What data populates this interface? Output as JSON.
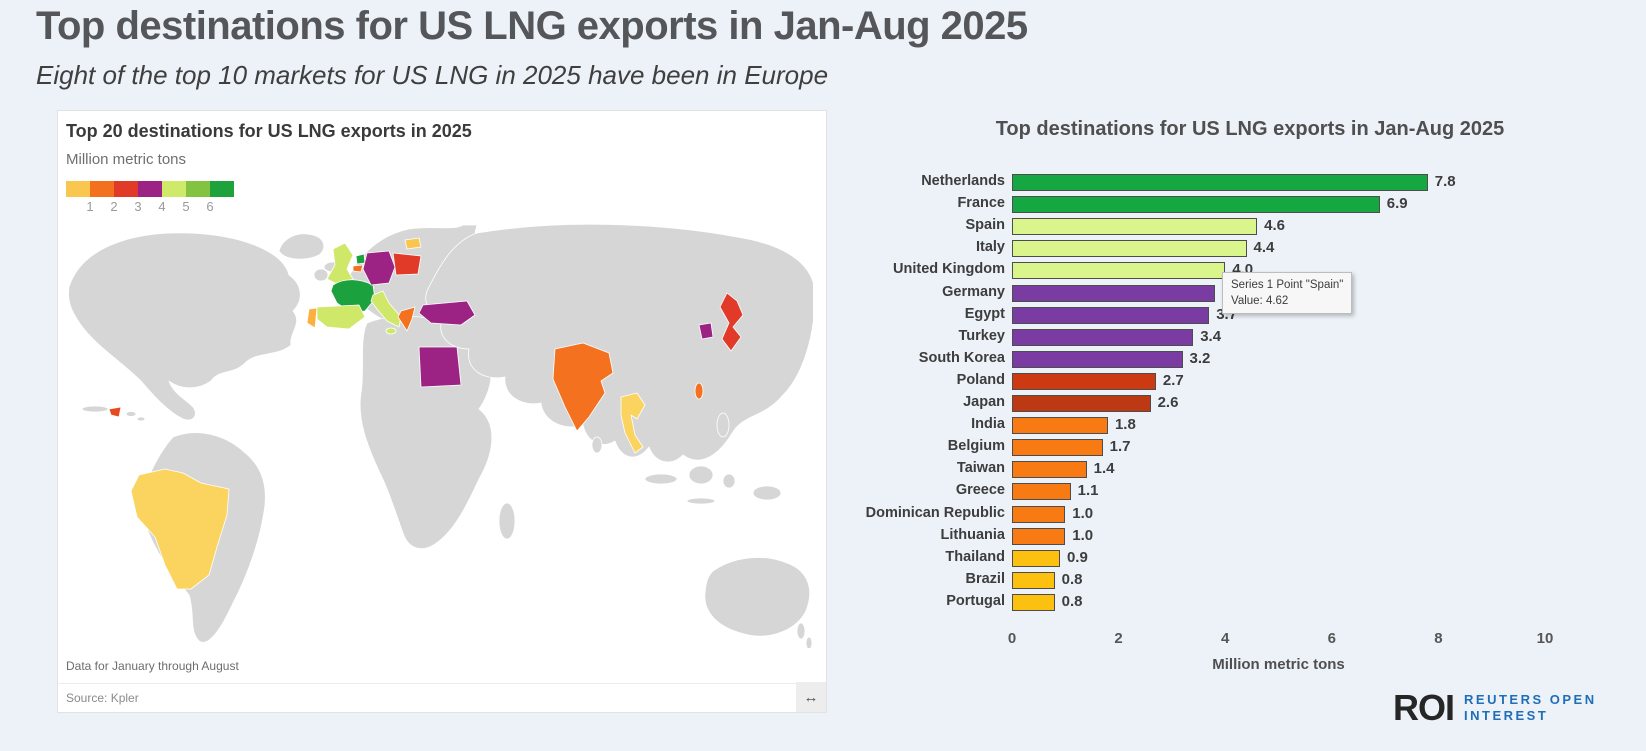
{
  "page": {
    "title": "Top destinations for US LNG exports in Jan-Aug 2025",
    "subtitle": "Eight of the top 10 markets for US LNG in 2025 have been in Europe",
    "background_color": "#ecf2f8"
  },
  "map_panel": {
    "title": "Top 20 destinations for US LNG exports in 2025",
    "units_label": "Million metric tons",
    "legend": {
      "colors": [
        "#f9c74f",
        "#f3711e",
        "#e23a28",
        "#9c2383",
        "#cfe969",
        "#82c341",
        "#1ea23c"
      ],
      "labels": [
        "1",
        "2",
        "3",
        "4",
        "5",
        "6"
      ]
    },
    "footnote": "Data for January through August",
    "source": "Source: Kpler",
    "resize_icon": "↔",
    "land_color": "#d6d6d6",
    "ocean_color": "#ffffff",
    "country_colors": {
      "brazil": "#fad45e",
      "dominican_republic": "#e8491f",
      "uk": "#cfe869",
      "ireland_land": "#d6d6d6",
      "netherlands": "#1ba23e",
      "belgium": "#f4711f",
      "france": "#1ba23e",
      "spain": "#cfe869",
      "portugal": "#fbb040",
      "germany": "#9c2383",
      "poland": "#e23a28",
      "lithuania": "#f9c74f",
      "italy": "#cfe869",
      "greece": "#f4711f",
      "turkey": "#9c2383",
      "egypt": "#9c2383",
      "india": "#f4711f",
      "thailand": "#fad45e",
      "taiwan": "#f4711f",
      "south_korea": "#9c2383",
      "japan": "#e23a28"
    }
  },
  "chart_data": {
    "type": "bar",
    "orientation": "horizontal",
    "title": "Top destinations for US LNG exports in Jan-Aug 2025",
    "xlabel": "Million metric tons",
    "xlim": [
      0,
      10
    ],
    "xticks": [
      0,
      2,
      4,
      6,
      8,
      10
    ],
    "xtick_labels": [
      "0",
      "2",
      "4",
      "6",
      "8",
      "10"
    ],
    "grid": false,
    "legend_position": "none",
    "categories": [
      "Netherlands",
      "France",
      "Spain",
      "Italy",
      "United Kingdom",
      "Germany",
      "Egypt",
      "Turkey",
      "South Korea",
      "Poland",
      "Japan",
      "India",
      "Belgium",
      "Taiwan",
      "Greece",
      "Dominican Republic",
      "Lithuania",
      "Thailand",
      "Brazil",
      "Portugal"
    ],
    "values": [
      7.8,
      6.9,
      4.6,
      4.4,
      4.0,
      3.8,
      3.7,
      3.4,
      3.2,
      2.7,
      2.6,
      1.8,
      1.7,
      1.4,
      1.1,
      1.0,
      1.0,
      0.9,
      0.8,
      0.8
    ],
    "value_labels": [
      "7.8",
      "6.9",
      "4.6",
      "4.4",
      "4.0",
      "",
      "3.7",
      "3.4",
      "3.2",
      "2.7",
      "2.6",
      "1.8",
      "1.7",
      "1.4",
      "1.1",
      "1.0",
      "1.0",
      "0.9",
      "0.8",
      "0.8"
    ],
    "colors": [
      "#15a742",
      "#15a742",
      "#d9f58b",
      "#d9f58b",
      "#d9f58b",
      "#7a3ba3",
      "#7a3ba3",
      "#7a3ba3",
      "#7a3ba3",
      "#cd3a11",
      "#bc3913",
      "#f87a12",
      "#f87a12",
      "#f87a12",
      "#f87a12",
      "#f87a12",
      "#f87a12",
      "#fcc011",
      "#fcc011",
      "#fcc011"
    ]
  },
  "tooltip": {
    "line1": "Series 1 Point \"Spain\"",
    "line2": "Value: 4.62"
  },
  "branding": {
    "logo": "ROI",
    "line1": "REUTERS OPEN",
    "line2": "INTEREST",
    "accent_color": "#1f6eb7"
  }
}
